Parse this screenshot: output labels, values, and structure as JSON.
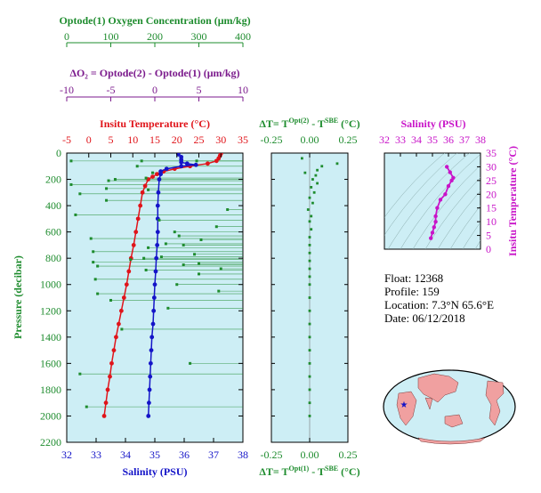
{
  "colors": {
    "oxygen": "#1e8c2e",
    "delta_o2": "#7b1a8c",
    "temperature": "#e0141a",
    "salinity": "#1414c8",
    "delta_t": "#1e8c2e",
    "ts_salinity": "#c814c8",
    "panel_fill": "#cdeef5",
    "map_land": "#f0a0a0",
    "float_marker": "#1414c8"
  },
  "top_axes": {
    "oxygen": {
      "label": "Optode(1) Oxygen Concentration (μm/kg)",
      "range": [
        0,
        400
      ],
      "ticks": [
        "0",
        "100",
        "200",
        "300",
        "400"
      ]
    },
    "delta_o2": {
      "label": "ΔO₂ = Optode(2) - Optode(1)   (μm/kg)",
      "range": [
        -10,
        10
      ],
      "ticks": [
        "-10",
        "-5",
        "0",
        "5",
        "10"
      ]
    }
  },
  "info": {
    "float": "Float:  12368",
    "profile": "Profile:  159",
    "location": "Location:  7.3°N  65.6°E",
    "date": "Date:  06/12/2018"
  },
  "chart_data": [
    {
      "type": "scatter",
      "id": "main_profile",
      "ylabel": "Pressure (decibar)",
      "ylim": [
        0,
        2200
      ],
      "y_ticks": [
        0,
        200,
        400,
        600,
        800,
        1000,
        1200,
        1400,
        1600,
        1800,
        2000,
        2200
      ],
      "axes": {
        "temperature": {
          "label": "Insitu Temperature (°C)",
          "range": [
            -5,
            35
          ],
          "ticks": [
            -5,
            0,
            5,
            10,
            15,
            20,
            25,
            30,
            35
          ]
        },
        "salinity": {
          "label": "Salinity (PSU)",
          "range": [
            32,
            38
          ],
          "ticks": [
            32,
            33,
            34,
            35,
            36,
            37,
            38
          ]
        }
      },
      "series": [
        {
          "name": "Insitu Temperature (°C)",
          "axis": "temperature",
          "points": [
            [
              30,
              5
            ],
            [
              29.8,
              20
            ],
            [
              29.5,
              40
            ],
            [
              29,
              60
            ],
            [
              27,
              80
            ],
            [
              23,
              100
            ],
            [
              19.5,
              120
            ],
            [
              17,
              140
            ],
            [
              15.5,
              160
            ],
            [
              14.5,
              180
            ],
            [
              13.5,
              200
            ],
            [
              12.8,
              250
            ],
            [
              12.2,
              300
            ],
            [
              11.7,
              400
            ],
            [
              11.2,
              500
            ],
            [
              10.7,
              600
            ],
            [
              10.2,
              700
            ],
            [
              9.6,
              800
            ],
            [
              9.1,
              900
            ],
            [
              8.6,
              1000
            ],
            [
              8,
              1100
            ],
            [
              7.4,
              1200
            ],
            [
              6.8,
              1300
            ],
            [
              6.2,
              1400
            ],
            [
              5.7,
              1500
            ],
            [
              5.2,
              1600
            ],
            [
              4.8,
              1700
            ],
            [
              4.3,
              1800
            ],
            [
              3.9,
              1900
            ],
            [
              3.5,
              2000
            ]
          ]
        },
        {
          "name": "Salinity (PSU)",
          "axis": "salinity",
          "points": [
            [
              35.8,
              10
            ],
            [
              35.9,
              30
            ],
            [
              35.9,
              50
            ],
            [
              35.9,
              70
            ],
            [
              36.1,
              80
            ],
            [
              36.4,
              90
            ],
            [
              35.9,
              100
            ],
            [
              35.4,
              120
            ],
            [
              35.2,
              140
            ],
            [
              35.2,
              160
            ],
            [
              35.15,
              200
            ],
            [
              35.12,
              300
            ],
            [
              35.1,
              400
            ],
            [
              35.1,
              500
            ],
            [
              35.1,
              600
            ],
            [
              35.08,
              700
            ],
            [
              35.05,
              800
            ],
            [
              35.03,
              900
            ],
            [
              35,
              1000
            ],
            [
              34.98,
              1100
            ],
            [
              34.96,
              1200
            ],
            [
              34.94,
              1300
            ],
            [
              34.9,
              1400
            ],
            [
              34.88,
              1500
            ],
            [
              34.86,
              1600
            ],
            [
              34.84,
              1700
            ],
            [
              34.82,
              1800
            ],
            [
              34.8,
              1900
            ],
            [
              34.78,
              2000
            ]
          ]
        },
        {
          "name": "Optode(1) Oxygen Concentration (μm/kg)",
          "axis": "oxygen",
          "points": [
            [
              10,
              60
            ],
            [
              170,
              60
            ],
            [
              295,
              60
            ],
            [
              160,
              100
            ],
            [
              195,
              150
            ],
            [
              180,
              190
            ],
            [
              110,
              200
            ],
            [
              95,
              210
            ],
            [
              10,
              240
            ],
            [
              90,
              270
            ],
            [
              185,
              280
            ],
            [
              30,
              310
            ],
            [
              90,
              360
            ],
            [
              365,
              430
            ],
            [
              20,
              470
            ],
            [
              210,
              510
            ],
            [
              340,
              560
            ],
            [
              245,
              600
            ],
            [
              255,
              630
            ],
            [
              55,
              650
            ],
            [
              305,
              660
            ],
            [
              225,
              690
            ],
            [
              265,
              700
            ],
            [
              185,
              720
            ],
            [
              60,
              750
            ],
            [
              290,
              770
            ],
            [
              215,
              790
            ],
            [
              175,
              800
            ],
            [
              145,
              810
            ],
            [
              60,
              830
            ],
            [
              300,
              840
            ],
            [
              265,
              850
            ],
            [
              70,
              860
            ],
            [
              350,
              880
            ],
            [
              180,
              890
            ],
            [
              300,
              920
            ],
            [
              65,
              960
            ],
            [
              250,
              1000
            ],
            [
              345,
              1050
            ],
            [
              70,
              1070
            ],
            [
              100,
              1120
            ],
            [
              230,
              1180
            ],
            [
              125,
              1340
            ],
            [
              280,
              1600
            ],
            [
              30,
              1680
            ],
            [
              45,
              1930
            ]
          ]
        }
      ]
    },
    {
      "type": "scatter",
      "id": "delta_t",
      "title": "ΔT = T^Opt(2) - T^SBE (°C)",
      "xlabel": "ΔT = T^Opt(1) - T^SBE (°C)",
      "xlim": [
        -0.25,
        0.25
      ],
      "ylim": [
        0,
        2200
      ],
      "x_ticks": [
        "-0.25",
        "0.00",
        "0.25"
      ],
      "series": [
        {
          "name": "ΔT",
          "points": [
            [
              0.18,
              80
            ],
            [
              -0.05,
              40
            ],
            [
              0.08,
              100
            ],
            [
              0.05,
              130
            ],
            [
              -0.03,
              150
            ],
            [
              0.04,
              170
            ],
            [
              0.02,
              200
            ],
            [
              0.05,
              230
            ],
            [
              0.01,
              260
            ],
            [
              0.03,
              300
            ],
            [
              0,
              340
            ],
            [
              0.02,
              380
            ],
            [
              -0.01,
              430
            ],
            [
              0.01,
              480
            ],
            [
              0,
              520
            ],
            [
              0.01,
              580
            ],
            [
              0,
              640
            ],
            [
              0,
              700
            ],
            [
              0,
              760
            ],
            [
              0,
              820
            ],
            [
              0,
              880
            ],
            [
              0,
              940
            ],
            [
              0,
              1000
            ],
            [
              0,
              1100
            ],
            [
              0,
              1200
            ],
            [
              0,
              1300
            ],
            [
              0,
              1400
            ],
            [
              0,
              1500
            ],
            [
              0,
              1600
            ],
            [
              0,
              1700
            ],
            [
              0,
              1800
            ],
            [
              0,
              1900
            ],
            [
              0,
              2000
            ]
          ]
        }
      ]
    },
    {
      "type": "line",
      "id": "ts_diagram",
      "title": "Salinity (PSU)",
      "ylabel": "Insitu Temperature (°C)",
      "xlim": [
        32,
        38
      ],
      "ylim": [
        0,
        35
      ],
      "x_ticks": [
        "32",
        "33",
        "34",
        "35",
        "36",
        "37",
        "38"
      ],
      "y_ticks": [
        "0",
        "5",
        "10",
        "15",
        "20",
        "25",
        "30",
        "35"
      ],
      "series": [
        {
          "name": "Salinity (PSU)",
          "points": [
            [
              35.9,
              30
            ],
            [
              36.1,
              28
            ],
            [
              36.3,
              26
            ],
            [
              36.2,
              25
            ],
            [
              36,
              23
            ],
            [
              35.8,
              20
            ],
            [
              35.5,
              18
            ],
            [
              35.3,
              15
            ],
            [
              35.2,
              12
            ],
            [
              35.2,
              10
            ],
            [
              35.1,
              8
            ],
            [
              35,
              6
            ],
            [
              34.9,
              4
            ]
          ]
        }
      ]
    }
  ]
}
